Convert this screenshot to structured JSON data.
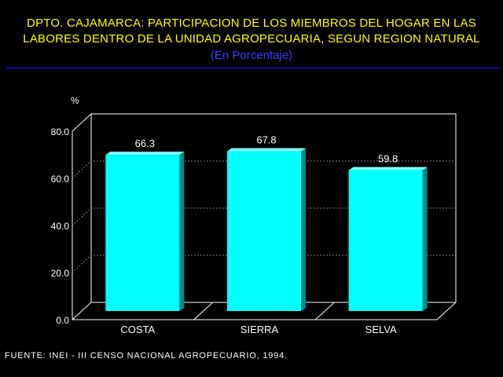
{
  "header": {
    "title_line1": "DPTO. CAJAMARCA: PARTICIPACION DE LOS MIEMBROS DEL HOGAR EN LAS",
    "title_line2": "LABORES DENTRO DE LA UNIDAD AGROPECUARIA, SEGUN REGION NATURAL",
    "subtitle": "(En Porcentaje)"
  },
  "footer": {
    "source": "FUENTE: INEI - III CENSO NACIONAL AGROPECUARIO, 1994."
  },
  "colors": {
    "title": "#ffff00",
    "subtitle": "#3a3aff",
    "bar": "#00ffff",
    "background": "#000000"
  },
  "chart_data": {
    "type": "bar",
    "title": "DPTO. CAJAMARCA: PARTICIPACION DE LOS MIEMBROS DEL HOGAR EN LAS LABORES DENTRO DE LA UNIDAD AGROPECUARIA, SEGUN REGION NATURAL",
    "subtitle": "(En Porcentaje)",
    "categories": [
      "COSTA",
      "SIERRA",
      "SELVA"
    ],
    "values": [
      66.3,
      67.8,
      59.8
    ],
    "data_labels": [
      "66.3",
      "67.8",
      "59.8"
    ],
    "ylabel": "%",
    "xlabel": "",
    "ylim": [
      0,
      80
    ],
    "yticks": [
      "0.0",
      "20.0",
      "40.0",
      "60.0",
      "80.0"
    ],
    "grid": true,
    "legend": "none"
  }
}
